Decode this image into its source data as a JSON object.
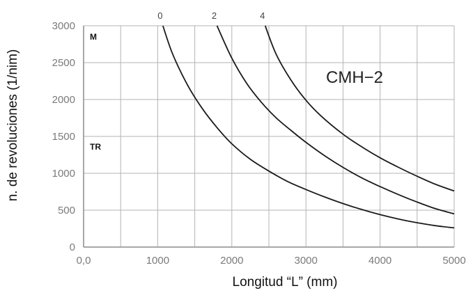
{
  "chart_data": {
    "type": "line",
    "title": "CMH−2",
    "xlabel": "Longitud “L” (mm)",
    "ylabel": "n. de revoluciones (1/nim)",
    "xlim": [
      0,
      5000
    ],
    "ylim": [
      0,
      3000
    ],
    "x_tick_labels": [
      "0,0",
      "1000",
      "2000",
      "3000",
      "4000",
      "5000"
    ],
    "y_tick_labels": [
      "0",
      "500",
      "1000",
      "1500",
      "2000",
      "2500",
      "3000"
    ],
    "grid": true,
    "annotations": [
      "M",
      "TR"
    ],
    "series": [
      {
        "top_label": "0",
        "x": [
          1070,
          1200,
          1400,
          1600,
          1800,
          2000,
          2250,
          2500,
          2750,
          3000,
          3250,
          3500,
          3750,
          4000,
          4250,
          4500,
          4750,
          5000
        ],
        "y": [
          3000,
          2620,
          2200,
          1880,
          1620,
          1400,
          1190,
          1030,
          890,
          780,
          680,
          590,
          510,
          440,
          380,
          330,
          290,
          260
        ]
      },
      {
        "top_label": "2",
        "x": [
          1800,
          2000,
          2200,
          2400,
          2600,
          2800,
          3000,
          3250,
          3500,
          3750,
          4000,
          4250,
          4500,
          4750,
          5000
        ],
        "y": [
          3000,
          2560,
          2220,
          1960,
          1750,
          1580,
          1420,
          1240,
          1080,
          940,
          820,
          710,
          610,
          520,
          450
        ]
      },
      {
        "top_label": "4",
        "x": [
          2450,
          2600,
          2800,
          3000,
          3200,
          3500,
          3750,
          4000,
          4250,
          4500,
          4750,
          5000
        ],
        "y": [
          3000,
          2610,
          2260,
          1990,
          1780,
          1530,
          1360,
          1210,
          1080,
          960,
          850,
          760
        ]
      }
    ],
    "colors": {
      "curve": "#1a1a1a",
      "grid": "#b3b3b3",
      "axis": "#8c8c8c"
    }
  }
}
